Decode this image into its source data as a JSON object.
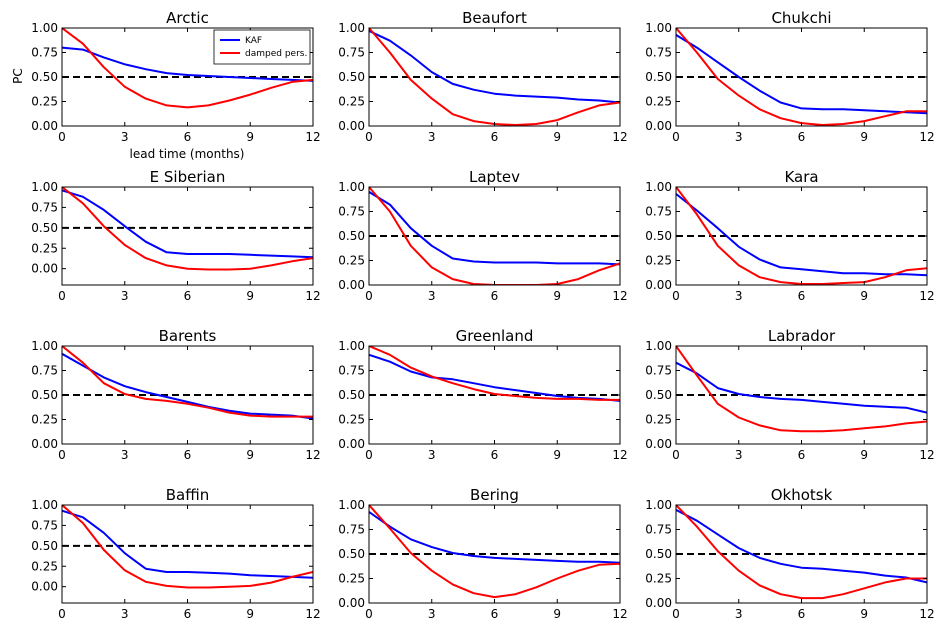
{
  "colors": {
    "kaf": "#0000ff",
    "damped": "#ff0000",
    "threshold": "#000000"
  },
  "legend": {
    "kaf": "KAF",
    "damped": "damped pers."
  },
  "axis_labels": {
    "y": "PC",
    "x": "lead time (months)"
  },
  "chart_data": [
    {
      "type": "line",
      "title": "Arctic",
      "ylim": [
        0,
        1
      ],
      "yticks": [
        0,
        0.25,
        0.5,
        0.75,
        1
      ],
      "xlim": [
        0,
        12
      ],
      "xticks": [
        0,
        3,
        6,
        9,
        12
      ],
      "x": [
        0,
        1,
        2,
        3,
        4,
        5,
        6,
        7,
        8,
        9,
        10,
        11,
        12
      ],
      "threshold": 0.5,
      "series": [
        {
          "name": "KAF",
          "values": [
            0.8,
            0.78,
            0.7,
            0.63,
            0.58,
            0.54,
            0.52,
            0.51,
            0.5,
            0.49,
            0.48,
            0.47,
            0.46
          ]
        },
        {
          "name": "damped pers.",
          "values": [
            1.0,
            0.84,
            0.6,
            0.4,
            0.28,
            0.21,
            0.19,
            0.21,
            0.26,
            0.32,
            0.39,
            0.45,
            0.47
          ]
        }
      ]
    },
    {
      "type": "line",
      "title": "Beaufort",
      "ylim": [
        0,
        1
      ],
      "yticks": [
        0,
        0.25,
        0.5,
        0.75,
        1
      ],
      "xlim": [
        0,
        12
      ],
      "xticks": [
        0,
        3,
        6,
        9,
        12
      ],
      "x": [
        0,
        1,
        2,
        3,
        4,
        5,
        6,
        7,
        8,
        9,
        10,
        11,
        12
      ],
      "threshold": 0.5,
      "series": [
        {
          "name": "KAF",
          "values": [
            0.97,
            0.87,
            0.72,
            0.55,
            0.43,
            0.37,
            0.33,
            0.31,
            0.3,
            0.29,
            0.27,
            0.26,
            0.24
          ]
        },
        {
          "name": "damped pers.",
          "values": [
            1.0,
            0.75,
            0.47,
            0.28,
            0.12,
            0.05,
            0.02,
            0.01,
            0.02,
            0.06,
            0.14,
            0.21,
            0.24
          ]
        }
      ]
    },
    {
      "type": "line",
      "title": "Chukchi",
      "ylim": [
        0,
        1
      ],
      "yticks": [
        0,
        0.25,
        0.5,
        0.75,
        1
      ],
      "xlim": [
        0,
        12
      ],
      "xticks": [
        0,
        3,
        6,
        9,
        12
      ],
      "x": [
        0,
        1,
        2,
        3,
        4,
        5,
        6,
        7,
        8,
        9,
        10,
        11,
        12
      ],
      "threshold": 0.5,
      "series": [
        {
          "name": "KAF",
          "values": [
            0.93,
            0.8,
            0.65,
            0.5,
            0.36,
            0.24,
            0.18,
            0.17,
            0.17,
            0.16,
            0.15,
            0.14,
            0.13
          ]
        },
        {
          "name": "damped pers.",
          "values": [
            1.0,
            0.75,
            0.48,
            0.31,
            0.17,
            0.08,
            0.03,
            0.01,
            0.02,
            0.05,
            0.1,
            0.15,
            0.15
          ]
        }
      ]
    },
    {
      "type": "line",
      "title": "E Siberian",
      "ylim": [
        -0.2,
        1
      ],
      "yticks": [
        0,
        0.25,
        0.5,
        0.75,
        1
      ],
      "xlim": [
        0,
        12
      ],
      "xticks": [
        0,
        3,
        6,
        9,
        12
      ],
      "x": [
        0,
        1,
        2,
        3,
        4,
        5,
        6,
        7,
        8,
        9,
        10,
        11,
        12
      ],
      "threshold": 0.5,
      "series": [
        {
          "name": "KAF",
          "values": [
            0.96,
            0.88,
            0.72,
            0.52,
            0.33,
            0.2,
            0.18,
            0.18,
            0.18,
            0.17,
            0.16,
            0.15,
            0.14
          ]
        },
        {
          "name": "damped pers.",
          "values": [
            1.0,
            0.8,
            0.52,
            0.29,
            0.13,
            0.04,
            0.0,
            -0.01,
            -0.01,
            0.0,
            0.04,
            0.09,
            0.13
          ]
        }
      ]
    },
    {
      "type": "line",
      "title": "Laptev",
      "ylim": [
        0,
        1
      ],
      "yticks": [
        0,
        0.25,
        0.5,
        0.75,
        1
      ],
      "xlim": [
        0,
        12
      ],
      "xticks": [
        0,
        3,
        6,
        9,
        12
      ],
      "x": [
        0,
        1,
        2,
        3,
        4,
        5,
        6,
        7,
        8,
        9,
        10,
        11,
        12
      ],
      "threshold": 0.5,
      "series": [
        {
          "name": "KAF",
          "values": [
            0.95,
            0.82,
            0.58,
            0.4,
            0.27,
            0.24,
            0.23,
            0.23,
            0.23,
            0.22,
            0.22,
            0.22,
            0.21
          ]
        },
        {
          "name": "damped pers.",
          "values": [
            1.0,
            0.75,
            0.4,
            0.18,
            0.06,
            0.01,
            0.0,
            0.0,
            0.0,
            0.01,
            0.06,
            0.15,
            0.22
          ]
        }
      ]
    },
    {
      "type": "line",
      "title": "Kara",
      "ylim": [
        0,
        1
      ],
      "yticks": [
        0,
        0.25,
        0.5,
        0.75,
        1
      ],
      "xlim": [
        0,
        12
      ],
      "xticks": [
        0,
        3,
        6,
        9,
        12
      ],
      "x": [
        0,
        1,
        2,
        3,
        4,
        5,
        6,
        7,
        8,
        9,
        10,
        11,
        12
      ],
      "threshold": 0.5,
      "series": [
        {
          "name": "KAF",
          "values": [
            0.93,
            0.76,
            0.58,
            0.39,
            0.26,
            0.18,
            0.16,
            0.14,
            0.12,
            0.12,
            0.11,
            0.11,
            0.1
          ]
        },
        {
          "name": "damped pers.",
          "values": [
            1.0,
            0.72,
            0.4,
            0.2,
            0.08,
            0.03,
            0.01,
            0.01,
            0.02,
            0.03,
            0.08,
            0.15,
            0.17
          ]
        }
      ]
    },
    {
      "type": "line",
      "title": "Barents",
      "ylim": [
        0,
        1
      ],
      "yticks": [
        0,
        0.25,
        0.5,
        0.75,
        1
      ],
      "xlim": [
        0,
        12
      ],
      "xticks": [
        0,
        3,
        6,
        9,
        12
      ],
      "x": [
        0,
        1,
        2,
        3,
        4,
        5,
        6,
        7,
        8,
        9,
        10,
        11,
        12
      ],
      "threshold": 0.5,
      "series": [
        {
          "name": "KAF",
          "values": [
            0.92,
            0.8,
            0.68,
            0.59,
            0.53,
            0.48,
            0.43,
            0.38,
            0.34,
            0.31,
            0.3,
            0.29,
            0.26
          ]
        },
        {
          "name": "damped pers.",
          "values": [
            1.0,
            0.83,
            0.62,
            0.51,
            0.46,
            0.44,
            0.41,
            0.37,
            0.32,
            0.29,
            0.28,
            0.28,
            0.28
          ]
        }
      ]
    },
    {
      "type": "line",
      "title": "Greenland",
      "ylim": [
        0,
        1
      ],
      "yticks": [
        0,
        0.25,
        0.5,
        0.75,
        1
      ],
      "xlim": [
        0,
        12
      ],
      "xticks": [
        0,
        3,
        6,
        9,
        12
      ],
      "x": [
        0,
        1,
        2,
        3,
        4,
        5,
        6,
        7,
        8,
        9,
        10,
        11,
        12
      ],
      "threshold": 0.5,
      "series": [
        {
          "name": "KAF",
          "values": [
            0.91,
            0.84,
            0.74,
            0.68,
            0.66,
            0.62,
            0.58,
            0.55,
            0.52,
            0.49,
            0.47,
            0.46,
            0.44
          ]
        },
        {
          "name": "damped pers.",
          "values": [
            1.0,
            0.91,
            0.78,
            0.69,
            0.62,
            0.56,
            0.51,
            0.49,
            0.47,
            0.46,
            0.46,
            0.45,
            0.45
          ]
        }
      ]
    },
    {
      "type": "line",
      "title": "Labrador",
      "ylim": [
        0,
        1
      ],
      "yticks": [
        0,
        0.25,
        0.5,
        0.75,
        1
      ],
      "xlim": [
        0,
        12
      ],
      "xticks": [
        0,
        3,
        6,
        9,
        12
      ],
      "x": [
        0,
        1,
        2,
        3,
        4,
        5,
        6,
        7,
        8,
        9,
        10,
        11,
        12
      ],
      "threshold": 0.5,
      "series": [
        {
          "name": "KAF",
          "values": [
            0.83,
            0.72,
            0.57,
            0.51,
            0.48,
            0.46,
            0.45,
            0.43,
            0.41,
            0.39,
            0.38,
            0.37,
            0.32
          ]
        },
        {
          "name": "damped pers.",
          "values": [
            1.0,
            0.7,
            0.41,
            0.27,
            0.19,
            0.14,
            0.13,
            0.13,
            0.14,
            0.16,
            0.18,
            0.21,
            0.23
          ]
        }
      ]
    },
    {
      "type": "line",
      "title": "Baffin",
      "ylim": [
        -0.2,
        1
      ],
      "yticks": [
        0,
        0.25,
        0.5,
        0.75,
        1
      ],
      "xlim": [
        0,
        12
      ],
      "xticks": [
        0,
        3,
        6,
        9,
        12
      ],
      "x": [
        0,
        1,
        2,
        3,
        4,
        5,
        6,
        7,
        8,
        9,
        10,
        11,
        12
      ],
      "threshold": 0.5,
      "series": [
        {
          "name": "KAF",
          "values": [
            0.93,
            0.85,
            0.66,
            0.41,
            0.22,
            0.18,
            0.18,
            0.17,
            0.16,
            0.14,
            0.13,
            0.12,
            0.11
          ]
        },
        {
          "name": "damped pers.",
          "values": [
            1.0,
            0.78,
            0.45,
            0.2,
            0.06,
            0.01,
            -0.01,
            -0.01,
            0.0,
            0.01,
            0.05,
            0.12,
            0.18
          ]
        }
      ]
    },
    {
      "type": "line",
      "title": "Bering",
      "ylim": [
        0,
        1
      ],
      "yticks": [
        0,
        0.25,
        0.5,
        0.75,
        1
      ],
      "xlim": [
        0,
        12
      ],
      "xticks": [
        0,
        3,
        6,
        9,
        12
      ],
      "x": [
        0,
        1,
        2,
        3,
        4,
        5,
        6,
        7,
        8,
        9,
        10,
        11,
        12
      ],
      "threshold": 0.5,
      "series": [
        {
          "name": "KAF",
          "values": [
            0.93,
            0.78,
            0.65,
            0.57,
            0.51,
            0.48,
            0.46,
            0.45,
            0.44,
            0.43,
            0.42,
            0.42,
            0.41
          ]
        },
        {
          "name": "damped pers.",
          "values": [
            1.0,
            0.76,
            0.51,
            0.33,
            0.19,
            0.1,
            0.06,
            0.09,
            0.16,
            0.25,
            0.33,
            0.39,
            0.4
          ]
        }
      ]
    },
    {
      "type": "line",
      "title": "Okhotsk",
      "ylim": [
        0,
        1
      ],
      "yticks": [
        0,
        0.25,
        0.5,
        0.75,
        1
      ],
      "xlim": [
        0,
        12
      ],
      "xticks": [
        0,
        3,
        6,
        9,
        12
      ],
      "x": [
        0,
        1,
        2,
        3,
        4,
        5,
        6,
        7,
        8,
        9,
        10,
        11,
        12
      ],
      "threshold": 0.5,
      "series": [
        {
          "name": "KAF",
          "values": [
            0.95,
            0.84,
            0.7,
            0.56,
            0.46,
            0.4,
            0.36,
            0.35,
            0.33,
            0.31,
            0.28,
            0.26,
            0.21
          ]
        },
        {
          "name": "damped pers.",
          "values": [
            1.0,
            0.78,
            0.53,
            0.33,
            0.18,
            0.09,
            0.05,
            0.05,
            0.09,
            0.15,
            0.21,
            0.25,
            0.25
          ]
        }
      ]
    }
  ]
}
